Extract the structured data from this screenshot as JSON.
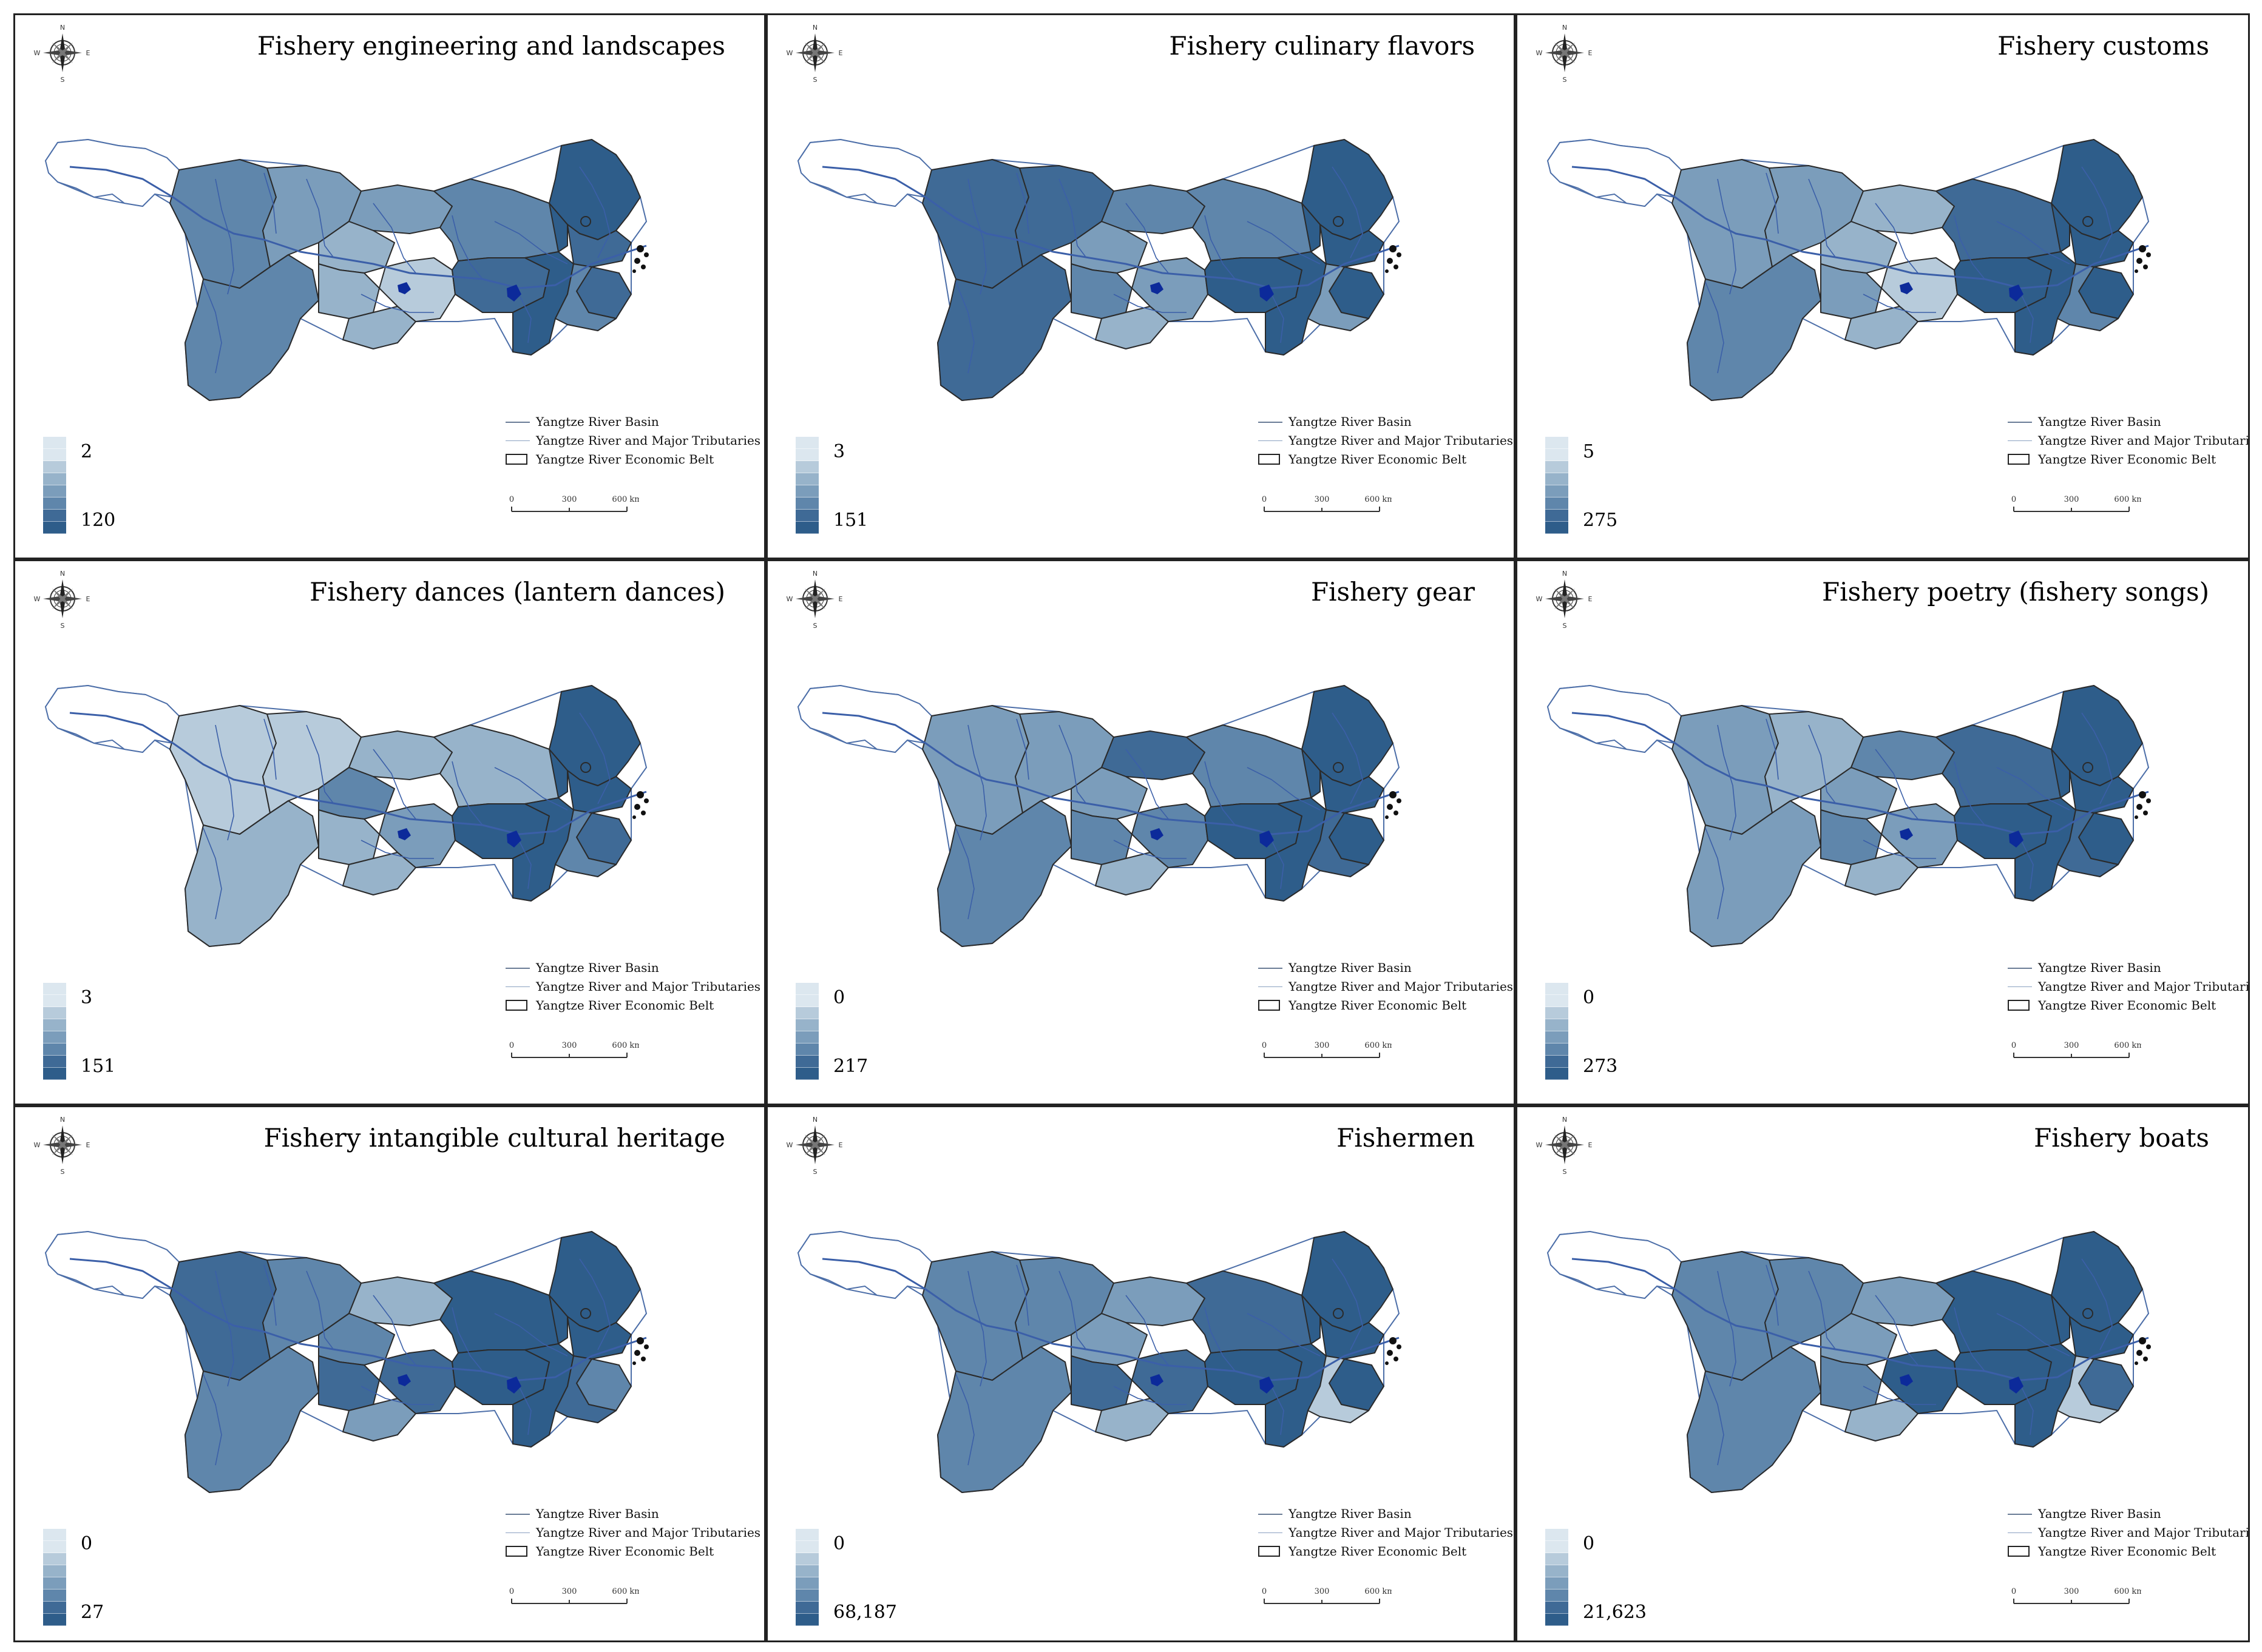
{
  "panels": [
    {
      "title": "Fishery engineering and landscapes",
      "min_label": "2",
      "max_label": "120",
      "class_by_region": [
        4,
        3,
        3,
        4,
        2,
        2,
        2,
        1,
        4,
        5,
        6,
        5,
        6,
        5,
        4
      ]
    },
    {
      "title": "Fishery culinary flavors",
      "min_label": "3",
      "max_label": "151",
      "class_by_region": [
        5,
        5,
        4,
        5,
        3,
        4,
        2,
        3,
        4,
        6,
        6,
        6,
        6,
        6,
        3
      ]
    },
    {
      "title": "Fishery customs",
      "min_label": "5",
      "max_label": "275",
      "class_by_region": [
        3,
        3,
        2,
        4,
        2,
        3,
        2,
        1,
        5,
        6,
        6,
        6,
        6,
        6,
        4
      ]
    },
    {
      "title": "Fishery dances (lantern dances)",
      "min_label": "3",
      "max_label": "151",
      "class_by_region": [
        1,
        1,
        2,
        2,
        4,
        2,
        2,
        3,
        2,
        6,
        6,
        5,
        6,
        6,
        4
      ]
    },
    {
      "title": "Fishery gear",
      "min_label": "0",
      "max_label": "217",
      "class_by_region": [
        3,
        3,
        5,
        4,
        3,
        4,
        2,
        4,
        4,
        6,
        6,
        6,
        6,
        6,
        5
      ]
    },
    {
      "title": "Fishery poetry (fishery songs)",
      "min_label": "0",
      "max_label": "273",
      "class_by_region": [
        3,
        2,
        4,
        3,
        3,
        4,
        2,
        3,
        5,
        6,
        6,
        6,
        6,
        6,
        5
      ]
    },
    {
      "title": "Fishery intangible cultural heritage",
      "min_label": "0",
      "max_label": "27",
      "class_by_region": [
        5,
        4,
        2,
        4,
        4,
        5,
        3,
        5,
        6,
        6,
        6,
        4,
        6,
        6,
        5
      ]
    },
    {
      "title": "Fishermen",
      "min_label": "0",
      "max_label": "68,187",
      "class_by_region": [
        4,
        4,
        3,
        4,
        3,
        5,
        2,
        5,
        5,
        6,
        6,
        6,
        6,
        6,
        1
      ]
    },
    {
      "title": "Fishery boats",
      "min_label": "0",
      "max_label": "21,623",
      "class_by_region": [
        4,
        4,
        3,
        4,
        3,
        4,
        2,
        6,
        6,
        6,
        6,
        5,
        6,
        6,
        1
      ]
    }
  ],
  "legend": {
    "basin": "Yangtze River Basin",
    "rivers": "Yangtze River and Major Tributaries",
    "belt": "Yangtze River Economic Belt"
  },
  "scale": {
    "ticks": [
      "0",
      "300",
      "600 km"
    ]
  },
  "compass": {
    "n": "N",
    "s": "S",
    "e": "E",
    "w": "W"
  },
  "colors": {
    "ramp": [
      "#dce7ef",
      "#b7cbdb",
      "#97b3ca",
      "#7b9dbb",
      "#5f86ab",
      "#3f6a96",
      "#2e5d8a"
    ],
    "river": "#3b5fa8",
    "lake": "#0c2a9a",
    "outline": "#2a2a2a",
    "basin_outline": "#4c6ea8"
  }
}
